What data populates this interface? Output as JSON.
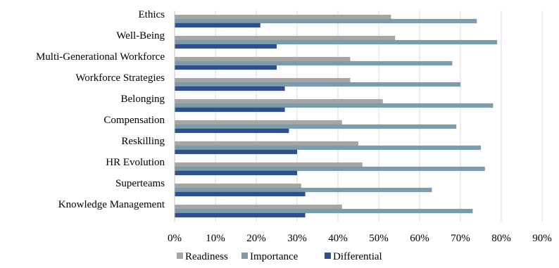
{
  "chart_data": {
    "type": "bar",
    "orientation": "horizontal",
    "categories": [
      "Ethics",
      "Well-Being",
      "Multi-Generational Workforce",
      "Workforce Strategies",
      "Belonging",
      "Compensation",
      "Reskilling",
      "HR Evolution",
      "Superteams",
      "Knowledge Management"
    ],
    "series": [
      {
        "name": "Readiness",
        "color": "#a6a6a6",
        "values": [
          53,
          54,
          43,
          43,
          51,
          41,
          45,
          46,
          31,
          41
        ]
      },
      {
        "name": "Importance",
        "color": "#7a9cac",
        "values": [
          74,
          79,
          68,
          70,
          78,
          69,
          75,
          76,
          63,
          73
        ]
      },
      {
        "name": "Differential",
        "color": "#2f4f8f",
        "values": [
          21,
          25,
          25,
          27,
          27,
          28,
          30,
          30,
          32,
          32
        ]
      }
    ],
    "xlim": [
      0,
      90
    ],
    "x_ticks": [
      "0%",
      "10%",
      "20%",
      "30%",
      "40%",
      "50%",
      "60%",
      "70%",
      "80%",
      "90%"
    ],
    "grid": true,
    "legend_position": "bottom",
    "title": "",
    "xlabel": "",
    "ylabel": ""
  }
}
